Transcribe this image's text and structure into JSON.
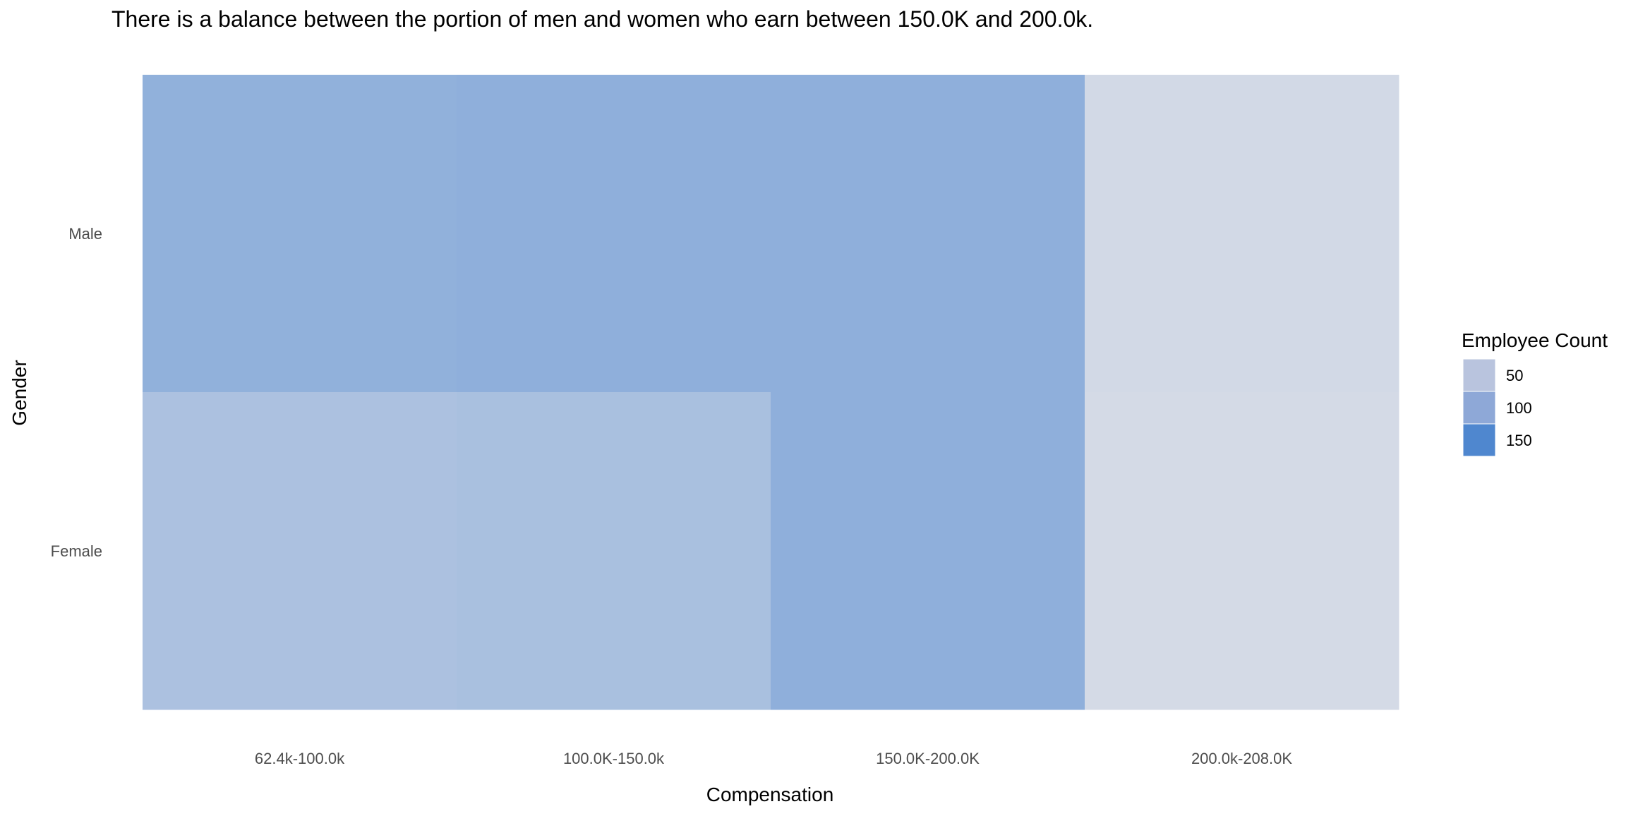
{
  "chart_data": {
    "type": "heatmap",
    "title": "There is a balance between the portion of men and women who earn between 150.0K and 200.0k.",
    "xlabel": "Compensation",
    "ylabel": "Gender",
    "x_categories": [
      "62.4k-100.0k",
      "100.0K-150.0k",
      "150.0K-200.0K",
      "200.0k-208.0K"
    ],
    "y_categories": [
      "Male",
      "Female"
    ],
    "cells": [
      {
        "x": "62.4k-100.0k",
        "y": "Male",
        "value": 85
      },
      {
        "x": "100.0K-150.0k",
        "y": "Male",
        "value": 88
      },
      {
        "x": "150.0K-200.0K",
        "y": "Male",
        "value": 88
      },
      {
        "x": "200.0k-208.0K",
        "y": "Male",
        "value": 12
      },
      {
        "x": "62.4k-100.0k",
        "y": "Female",
        "value": 55
      },
      {
        "x": "100.0K-150.0k",
        "y": "Female",
        "value": 58
      },
      {
        "x": "150.0K-200.0K",
        "y": "Female",
        "value": 88
      },
      {
        "x": "200.0k-208.0K",
        "y": "Female",
        "value": 10
      }
    ],
    "color_scale": {
      "low_value": 0,
      "high_value": 165,
      "low_color": "#dde0e8",
      "high_color": "#4a84cf"
    },
    "legend": {
      "title": "Employee Count",
      "placement": "right",
      "breaks": [
        50,
        100,
        150
      ],
      "colors": [
        "#b9c4de",
        "#8ea8d7",
        "#4f87cf"
      ],
      "labels": [
        "50",
        "100",
        "150"
      ]
    },
    "grid": false
  }
}
